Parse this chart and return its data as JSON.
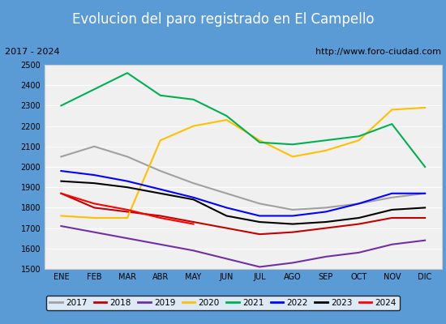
{
  "title": "Evolucion del paro registrado en El Campello",
  "subtitle_left": "2017 - 2024",
  "subtitle_right": "http://www.foro-ciudad.com",
  "title_bg_color": "#5b9bd5",
  "title_text_color": "#ffffff",
  "subtitle_bg_color": "#ffffff",
  "subtitle_text_color": "#000000",
  "plot_bg_color": "#f0f0f0",
  "months": [
    "ENE",
    "FEB",
    "MAR",
    "ABR",
    "MAY",
    "JUN",
    "JUL",
    "AGO",
    "SEP",
    "OCT",
    "NOV",
    "DIC"
  ],
  "ylim": [
    1500,
    2500
  ],
  "yticks": [
    1500,
    1600,
    1700,
    1800,
    1900,
    2000,
    2100,
    2200,
    2300,
    2400,
    2500
  ],
  "series": {
    "2017": {
      "color": "#a0a0a0",
      "data": [
        2050,
        2100,
        2050,
        1980,
        1920,
        1870,
        1820,
        1790,
        1800,
        1820,
        1850,
        1870
      ]
    },
    "2018": {
      "color": "#c00000",
      "data": [
        1870,
        1800,
        1780,
        1760,
        1730,
        1700,
        1670,
        1680,
        1700,
        1720,
        1750,
        1750
      ]
    },
    "2019": {
      "color": "#7030a0",
      "data": [
        1710,
        1680,
        1650,
        1620,
        1590,
        1550,
        1510,
        1530,
        1560,
        1580,
        1620,
        1640
      ]
    },
    "2020": {
      "color": "#ffc000",
      "data": [
        1760,
        1750,
        1750,
        2130,
        2200,
        2230,
        2130,
        2050,
        2080,
        2130,
        2280,
        2290
      ]
    },
    "2021": {
      "color": "#00b050",
      "data": [
        2300,
        2380,
        2460,
        2350,
        2330,
        2250,
        2120,
        2110,
        2130,
        2150,
        2210,
        2000
      ]
    },
    "2022": {
      "color": "#0000ff",
      "data": [
        1980,
        1960,
        1930,
        1890,
        1850,
        1800,
        1760,
        1760,
        1780,
        1820,
        1870,
        1870
      ]
    },
    "2023": {
      "color": "#000000",
      "data": [
        1930,
        1920,
        1900,
        1870,
        1840,
        1760,
        1730,
        1720,
        1730,
        1750,
        1790,
        1800
      ]
    },
    "2024": {
      "color": "#ff0000",
      "data": [
        1870,
        1820,
        1790,
        1750,
        1720,
        null,
        null,
        null,
        null,
        null,
        null,
        null
      ]
    }
  }
}
